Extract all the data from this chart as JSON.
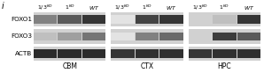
{
  "panel_label": "i",
  "row_labels": [
    "FOXO1",
    "FOXO3",
    "ACTB"
  ],
  "col_group_labels": [
    "CBM",
    "CTX",
    "HPC"
  ],
  "bg_color": "#f0f0f0",
  "figsize": [
    2.98,
    0.83
  ],
  "dpi": 100,
  "groups": [
    {
      "name": "CBM",
      "lanes": [
        {
          "label": "1/3KO",
          "FOXO1": 0.55,
          "FOXO3": 0.28,
          "ACTB": 0.92
        },
        {
          "label": "1KO",
          "FOXO1": 0.72,
          "FOXO3": 0.42,
          "ACTB": 0.92
        },
        {
          "label": "WT",
          "FOXO1": 0.88,
          "FOXO3": 0.6,
          "ACTB": 0.92
        }
      ]
    },
    {
      "name": "CTX",
      "lanes": [
        {
          "label": "1/3KO",
          "FOXO1": 0.12,
          "FOXO3": 0.12,
          "ACTB": 0.88
        },
        {
          "label": "1KO",
          "FOXO1": 0.82,
          "FOXO3": 0.55,
          "ACTB": 0.9
        },
        {
          "label": "WT",
          "FOXO1": 0.88,
          "FOXO3": 0.65,
          "ACTB": 0.9
        }
      ]
    },
    {
      "name": "HPC",
      "lanes": [
        {
          "label": "1/3KO",
          "FOXO1": 0.2,
          "FOXO3": 0.2,
          "ACTB": 0.88
        },
        {
          "label": "1KO",
          "FOXO1": 0.28,
          "FOXO3": 0.85,
          "ACTB": 0.9
        },
        {
          "label": "WT",
          "FOXO1": 0.88,
          "FOXO3": 0.72,
          "ACTB": 0.9
        }
      ]
    }
  ]
}
